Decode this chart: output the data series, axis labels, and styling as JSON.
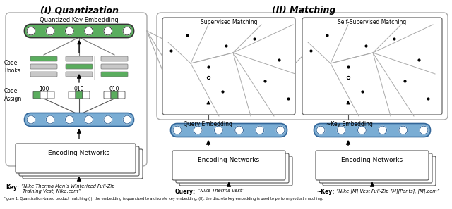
{
  "title_left": "(I) Quantization",
  "title_right": "(II) Matching",
  "section_supervised": "Supervised Matching",
  "section_self": "Self-Supervised Matching",
  "label_codebooks": "Code-\nBooks",
  "label_codeassign": "Code-\nAssign",
  "label_qke": "Quantized Key Embedding",
  "label_encoding": "Encoding Networks",
  "label_qemb": "Query Embedding",
  "label_nkemb": "~Key Embedding",
  "key_label": "Key",
  "key_text": "“Nike Therma Men’s Winterized Full-Zip\n Training Vest, Nike.com”",
  "query_label": "Query",
  "query_text": "“Nike Therma Vest”",
  "nkey_label": "~Key",
  "nkey_text": "“Nike [M] Vest Full-Zip [M][Pants], [M].com”",
  "code_labels": [
    "100",
    "010",
    "010"
  ],
  "green_color": "#5aad5e",
  "blue_color": "#7aadd4",
  "gray_color": "#c8c8c8",
  "bg_color": "#ffffff"
}
